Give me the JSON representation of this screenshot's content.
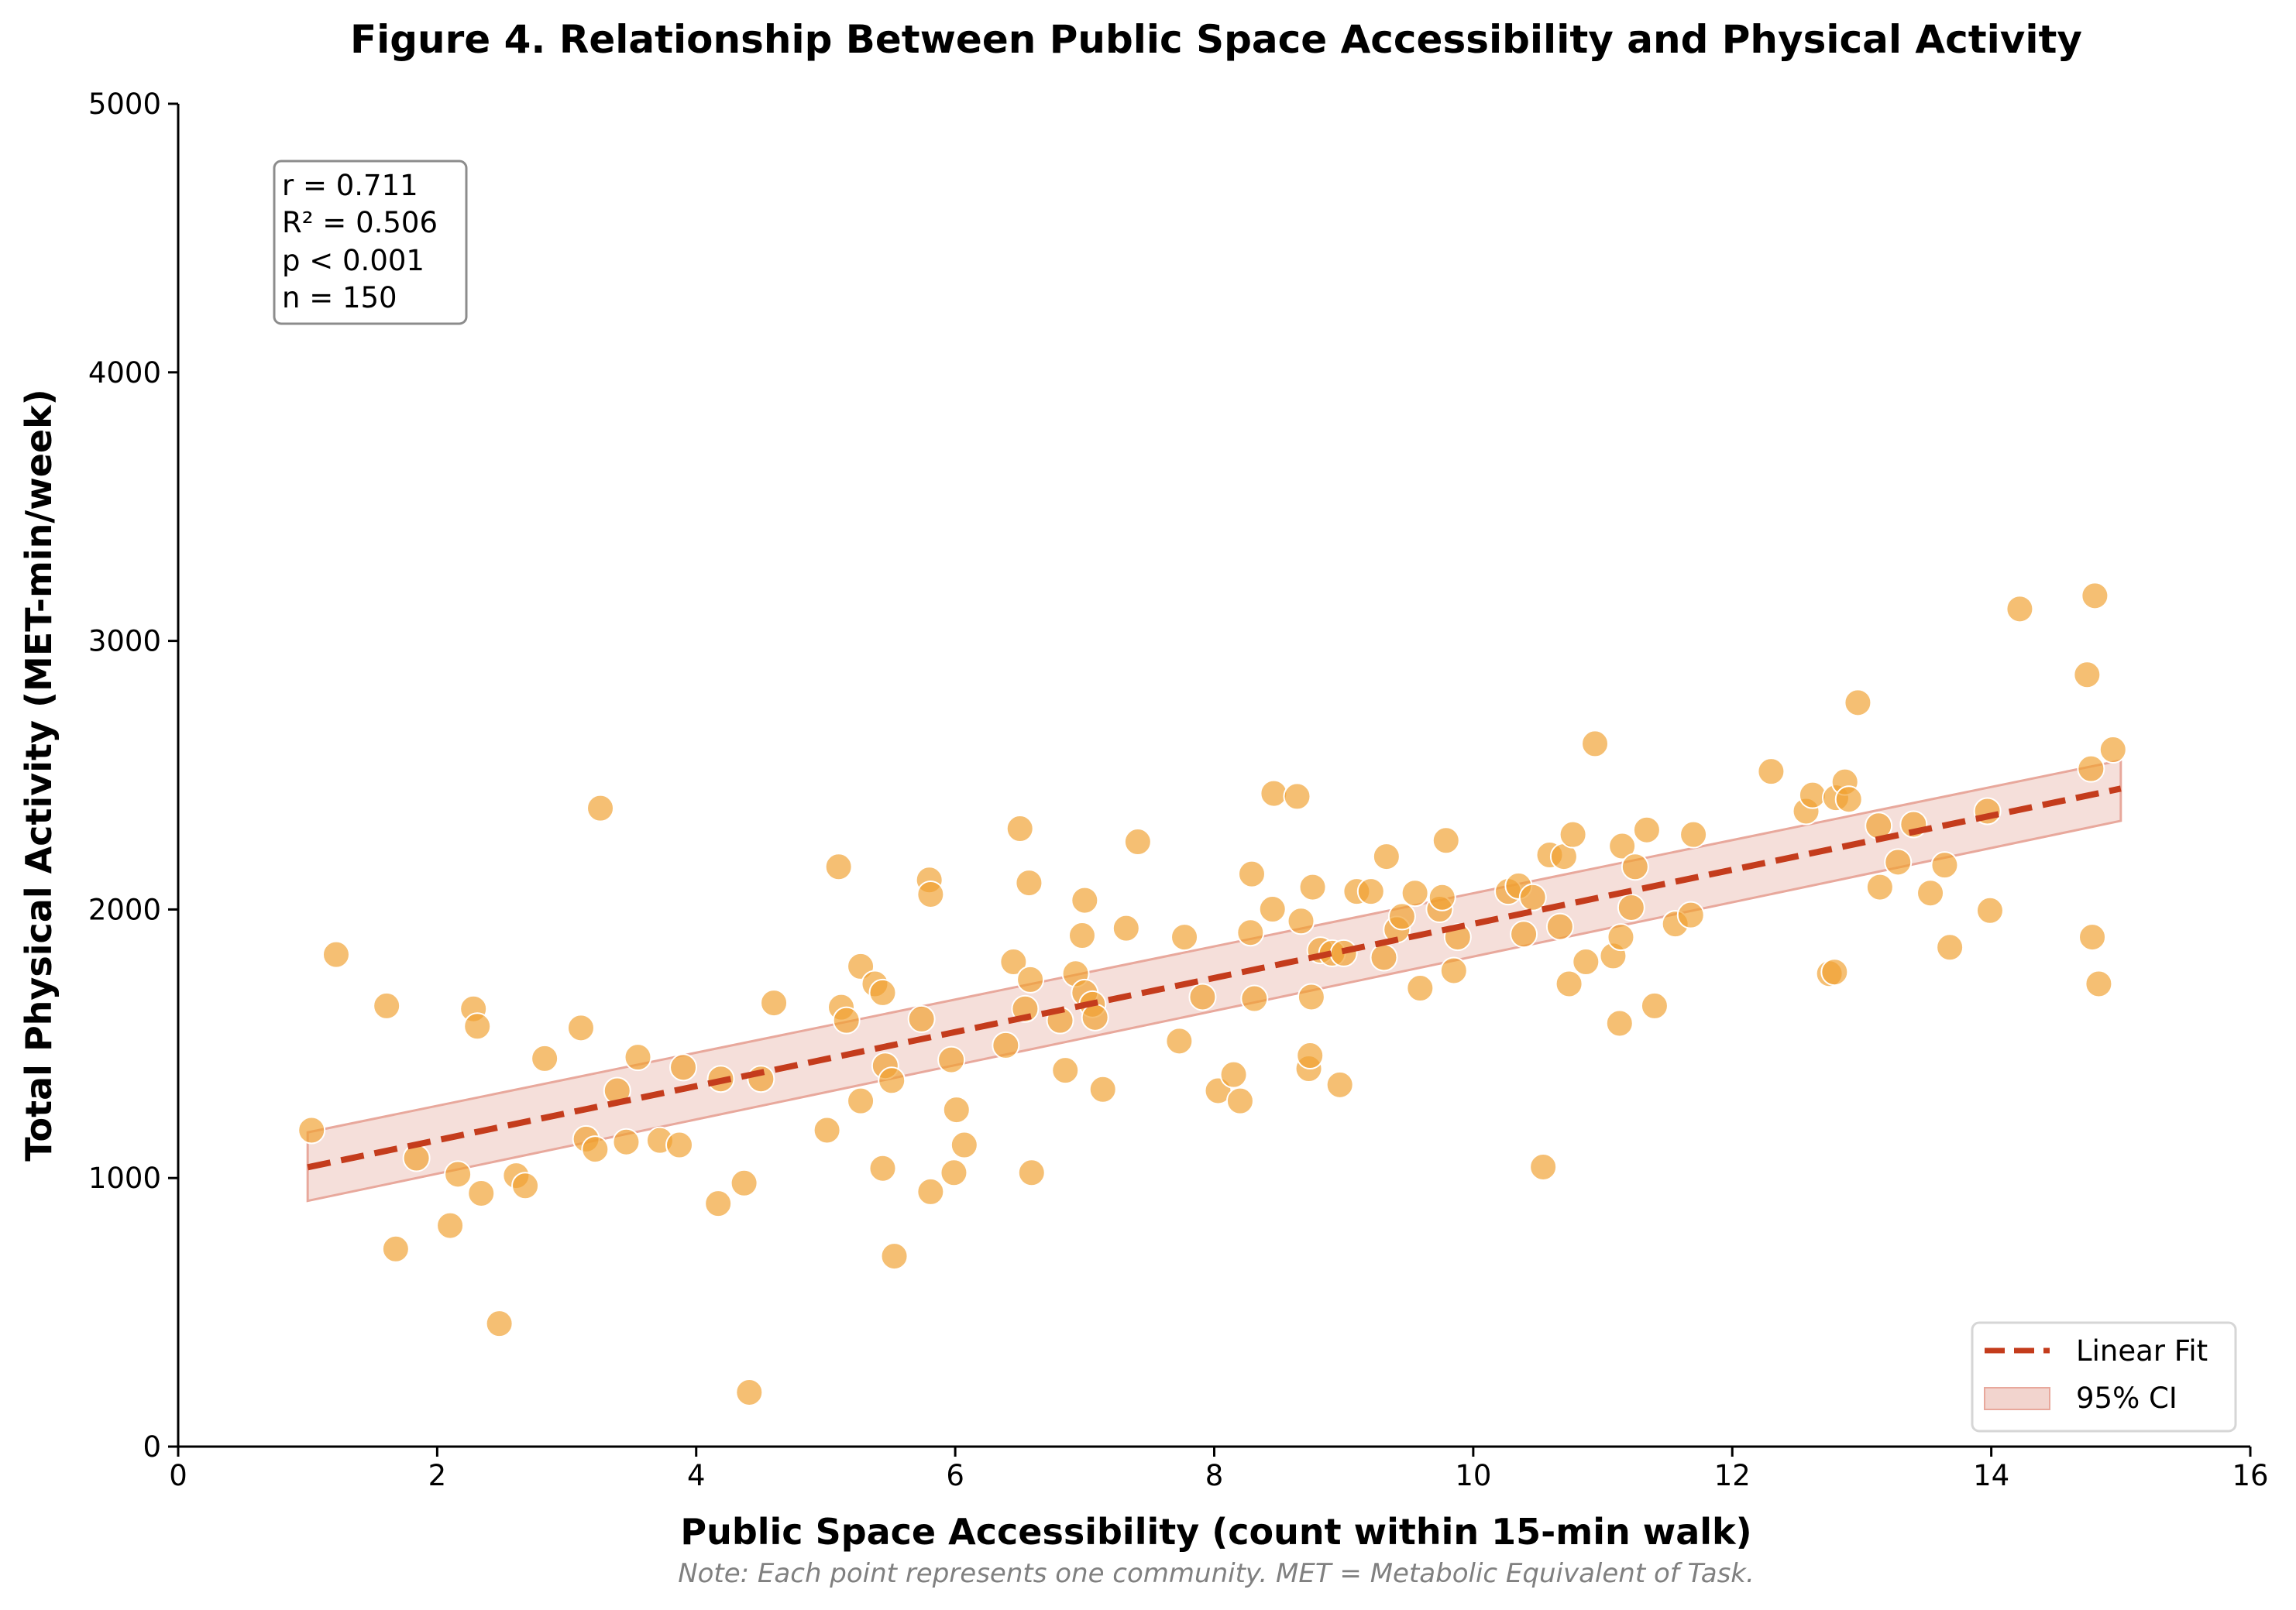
{
  "chart_data": {
    "type": "scatter",
    "title": "Figure 4. Relationship Between Public Space Accessibility and Physical Activity",
    "xlabel": "Public Space Accessibility (count within 15-min walk)",
    "ylabel": "Total Physical Activity (MET-min/week)",
    "note": "Note: Each point represents one community. MET = Metabolic Equivalent of Task.",
    "xlim": [
      0,
      16
    ],
    "ylim": [
      0,
      5000
    ],
    "xticks": [
      0,
      2,
      4,
      6,
      8,
      10,
      12,
      14,
      16
    ],
    "yticks": [
      0,
      1000,
      2000,
      3000,
      4000,
      5000
    ],
    "grid": false,
    "colors": {
      "points": "#f0a030",
      "fit_line": "#c43c1c",
      "ci_fill": "#f2d4ce",
      "ci_edge": "#e8a89c"
    },
    "stats_box": {
      "lines": [
        "r = 0.711",
        "R² = 0.506",
        "p < 0.001",
        "n = 150"
      ],
      "placement": "top-left"
    },
    "legend": {
      "placement": "bottom-right",
      "entries": [
        {
          "label": "Linear Fit",
          "kind": "dashed-line"
        },
        {
          "label": "95% CI",
          "kind": "band"
        }
      ]
    },
    "fit": {
      "x": [
        1.0,
        15.0
      ],
      "y": [
        1040,
        2450
      ]
    },
    "ci": {
      "x": [
        1.0,
        15.0
      ],
      "lower": [
        915,
        2330
      ],
      "upper": [
        1170,
        2555
      ]
    },
    "series": [
      {
        "name": "Communities",
        "points": [
          [
            1.03,
            1178
          ],
          [
            1.22,
            1832
          ],
          [
            1.61,
            1641
          ],
          [
            1.68,
            736
          ],
          [
            1.84,
            1074
          ],
          [
            2.1,
            823
          ],
          [
            2.16,
            1014
          ],
          [
            2.28,
            1630
          ],
          [
            2.31,
            1565
          ],
          [
            2.34,
            943
          ],
          [
            2.48,
            458
          ],
          [
            2.61,
            1009
          ],
          [
            2.68,
            971
          ],
          [
            2.83,
            1445
          ],
          [
            3.11,
            1559
          ],
          [
            3.15,
            1145
          ],
          [
            3.22,
            1107
          ],
          [
            3.26,
            2377
          ],
          [
            3.39,
            1325
          ],
          [
            3.46,
            1134
          ],
          [
            3.55,
            1450
          ],
          [
            3.72,
            1140
          ],
          [
            3.87,
            1123
          ],
          [
            3.9,
            1412
          ],
          [
            4.17,
            905
          ],
          [
            4.19,
            1369
          ],
          [
            4.37,
            981
          ],
          [
            4.41,
            202
          ],
          [
            4.5,
            1369
          ],
          [
            4.6,
            1652
          ],
          [
            5.01,
            1178
          ],
          [
            5.1,
            2159
          ],
          [
            5.12,
            1636
          ],
          [
            5.16,
            1587
          ],
          [
            5.27,
            1788
          ],
          [
            5.27,
            1287
          ],
          [
            5.38,
            1723
          ],
          [
            5.44,
            1690
          ],
          [
            5.44,
            1036
          ],
          [
            5.46,
            1418
          ],
          [
            5.51,
            1363
          ],
          [
            5.53,
            709
          ],
          [
            5.74,
            1592
          ],
          [
            5.8,
            2110
          ],
          [
            5.81,
            2056
          ],
          [
            5.81,
            949
          ],
          [
            5.97,
            1440
          ],
          [
            5.99,
            1020
          ],
          [
            6.01,
            1254
          ],
          [
            6.07,
            1123
          ],
          [
            6.39,
            1494
          ],
          [
            6.45,
            1805
          ],
          [
            6.5,
            2301
          ],
          [
            6.54,
            1630
          ],
          [
            6.57,
            2099
          ],
          [
            6.58,
            1739
          ],
          [
            6.59,
            1020
          ],
          [
            6.81,
            1587
          ],
          [
            6.85,
            1401
          ],
          [
            6.93,
            1761
          ],
          [
            6.98,
            1903
          ],
          [
            7.0,
            1690
          ],
          [
            7.0,
            2034
          ],
          [
            7.06,
            1647
          ],
          [
            7.08,
            1598
          ],
          [
            7.14,
            1330
          ],
          [
            7.32,
            1930
          ],
          [
            7.41,
            2252
          ],
          [
            7.73,
            1510
          ],
          [
            7.77,
            1897
          ],
          [
            7.91,
            1674
          ],
          [
            8.03,
            1325
          ],
          [
            8.15,
            1385
          ],
          [
            8.2,
            1287
          ],
          [
            8.28,
            1914
          ],
          [
            8.29,
            2132
          ],
          [
            8.31,
            1668
          ],
          [
            8.45,
            2001
          ],
          [
            8.46,
            2432
          ],
          [
            8.64,
            2421
          ],
          [
            8.67,
            1957
          ],
          [
            8.73,
            1407
          ],
          [
            8.74,
            1456
          ],
          [
            8.75,
            1674
          ],
          [
            8.76,
            2083
          ],
          [
            8.82,
            1848
          ],
          [
            8.91,
            1837
          ],
          [
            8.97,
            1347
          ],
          [
            9.0,
            1837
          ],
          [
            9.1,
            2067
          ],
          [
            9.21,
            2067
          ],
          [
            9.31,
            1821
          ],
          [
            9.33,
            2197
          ],
          [
            9.41,
            1925
          ],
          [
            9.45,
            1974
          ],
          [
            9.55,
            2061
          ],
          [
            9.59,
            1707
          ],
          [
            9.74,
            2001
          ],
          [
            9.76,
            2045
          ],
          [
            9.79,
            2257
          ],
          [
            9.85,
            1772
          ],
          [
            9.88,
            1897
          ],
          [
            10.27,
            2067
          ],
          [
            10.35,
            2088
          ],
          [
            10.39,
            1908
          ],
          [
            10.46,
            2045
          ],
          [
            10.54,
            1041
          ],
          [
            10.59,
            2203
          ],
          [
            10.67,
            1936
          ],
          [
            10.7,
            2197
          ],
          [
            10.74,
            1723
          ],
          [
            10.77,
            2279
          ],
          [
            10.87,
            1805
          ],
          [
            10.94,
            2617
          ],
          [
            11.08,
            1827
          ],
          [
            11.13,
            1576
          ],
          [
            11.14,
            1897
          ],
          [
            11.15,
            2236
          ],
          [
            11.22,
            2007
          ],
          [
            11.25,
            2159
          ],
          [
            11.34,
            2296
          ],
          [
            11.4,
            1641
          ],
          [
            11.56,
            1946
          ],
          [
            11.68,
            1979
          ],
          [
            11.7,
            2279
          ],
          [
            12.3,
            2514
          ],
          [
            12.57,
            2366
          ],
          [
            12.62,
            2426
          ],
          [
            12.75,
            1761
          ],
          [
            12.79,
            1767
          ],
          [
            12.8,
            2416
          ],
          [
            12.87,
            2475
          ],
          [
            12.9,
            2410
          ],
          [
            12.97,
            2770
          ],
          [
            13.13,
            2312
          ],
          [
            13.14,
            2083
          ],
          [
            13.28,
            2176
          ],
          [
            13.4,
            2317
          ],
          [
            13.53,
            2061
          ],
          [
            13.64,
            2165
          ],
          [
            13.68,
            1859
          ],
          [
            13.97,
            2366
          ],
          [
            13.99,
            1996
          ],
          [
            14.22,
            3119
          ],
          [
            14.74,
            2874
          ],
          [
            14.77,
            2524
          ],
          [
            14.78,
            1897
          ],
          [
            14.8,
            3168
          ],
          [
            14.83,
            1723
          ],
          [
            14.94,
            2595
          ]
        ]
      }
    ]
  }
}
